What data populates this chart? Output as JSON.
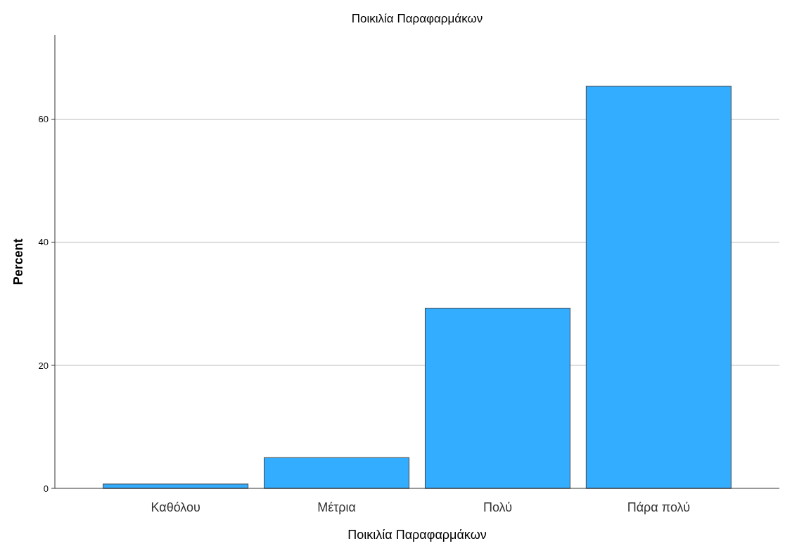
{
  "chart_data": {
    "type": "bar",
    "title": "Ποικιλία Παραφαρμάκων",
    "xlabel": "Ποικιλία Παραφαρμάκων",
    "ylabel": "Percent",
    "categories": [
      "Καθόλου",
      "Μέτρια",
      "Πολύ",
      "Πάρα πολύ"
    ],
    "values": [
      0.7,
      5.0,
      29.3,
      65.4
    ],
    "color": "#33adff",
    "ylim": [
      0,
      73.7
    ],
    "yticks": [
      0,
      20,
      40,
      60
    ],
    "grid": "y"
  }
}
